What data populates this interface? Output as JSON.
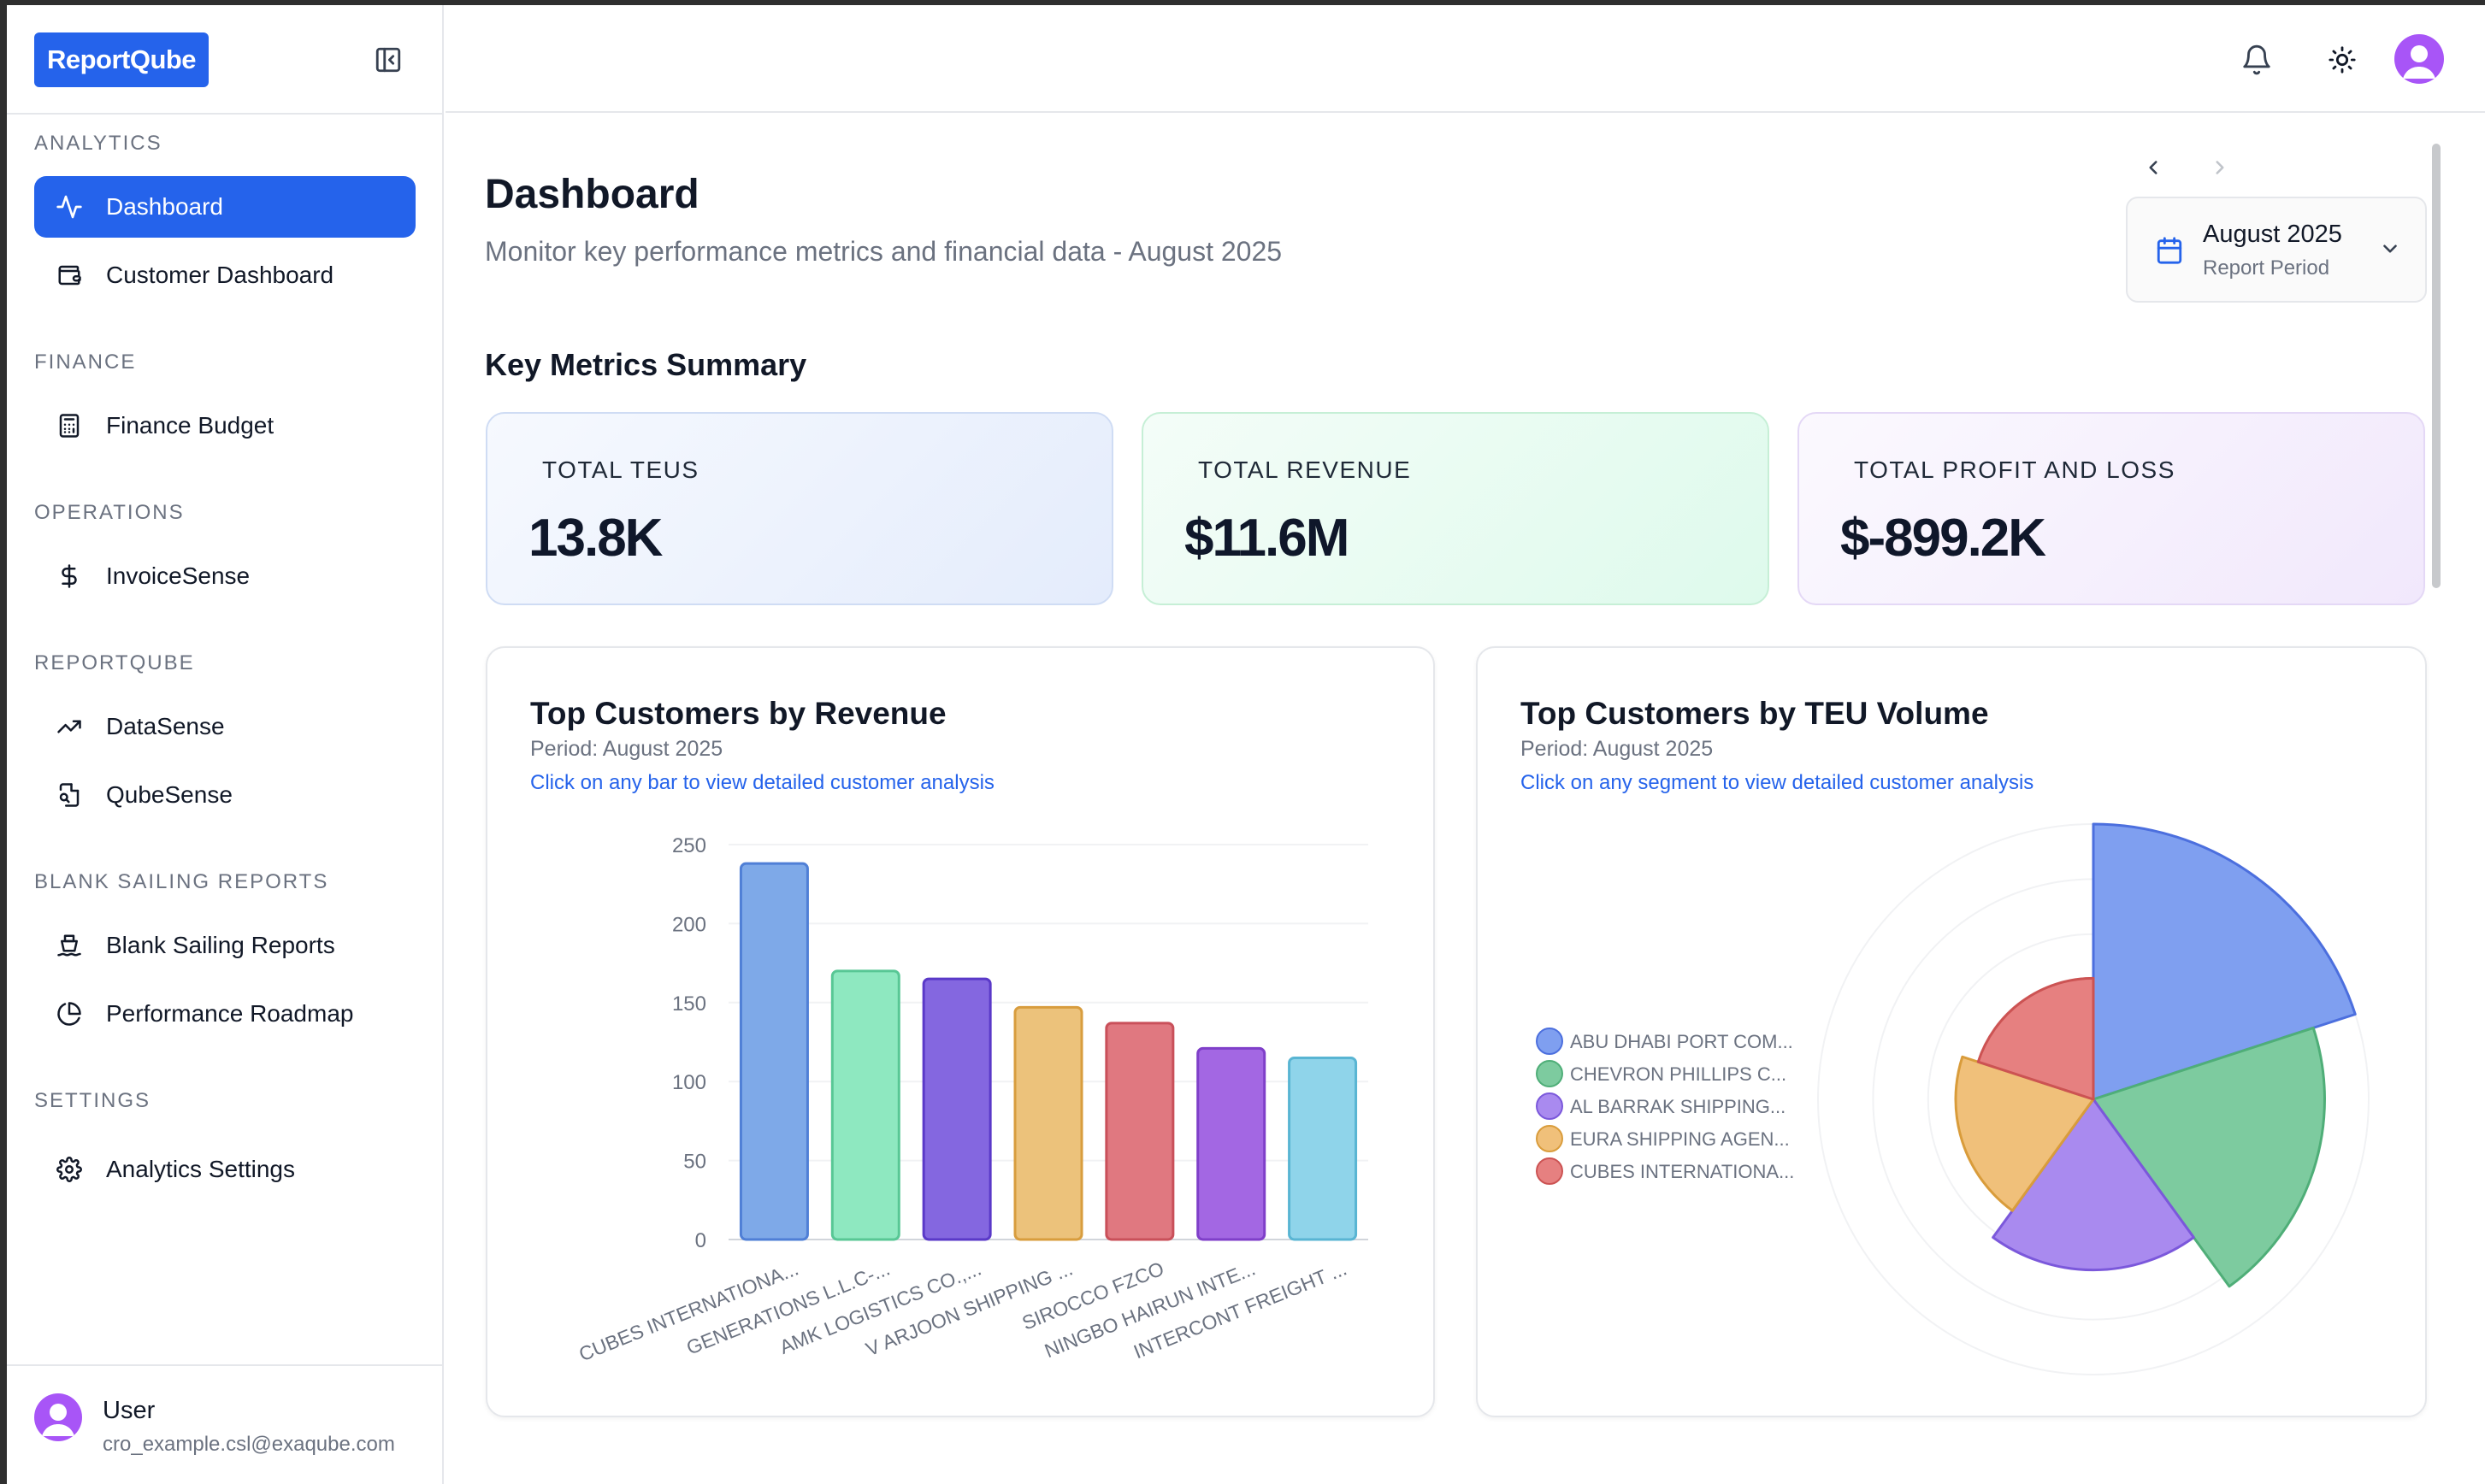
{
  "brand": {
    "name": "ReportQube"
  },
  "sidebar": {
    "sections": [
      {
        "label": "ANALYTICS",
        "items": [
          {
            "label": "Dashboard",
            "icon": "activity-icon",
            "active": true
          },
          {
            "label": "Customer Dashboard",
            "icon": "wallet-icon",
            "active": false
          }
        ]
      },
      {
        "label": "FINANCE",
        "items": [
          {
            "label": "Finance Budget",
            "icon": "calculator-icon",
            "active": false
          }
        ]
      },
      {
        "label": "OPERATIONS",
        "items": [
          {
            "label": "InvoiceSense",
            "icon": "dollar-icon",
            "active": false
          }
        ]
      },
      {
        "label": "REPORTQUBE",
        "items": [
          {
            "label": "DataSense",
            "icon": "trending-up-icon",
            "active": false
          },
          {
            "label": "QubeSense",
            "icon": "file-search-icon",
            "active": false
          }
        ]
      },
      {
        "label": "BLANK SAILING REPORTS",
        "items": [
          {
            "label": "Blank Sailing Reports",
            "icon": "ship-icon",
            "active": false
          },
          {
            "label": "Performance Roadmap",
            "icon": "pie-chart-icon",
            "active": false
          }
        ]
      },
      {
        "label": "SETTINGS",
        "items": [
          {
            "label": "Analytics Settings",
            "icon": "gear-icon",
            "active": false
          }
        ]
      }
    ],
    "user": {
      "name": "User",
      "email": "cro_example.csl@exaqube.com"
    }
  },
  "header": {
    "icons": [
      "bell-icon",
      "sun-icon",
      "user-avatar"
    ]
  },
  "page": {
    "title": "Dashboard",
    "subtitle": "Monitor key performance metrics and financial data - August 2025",
    "period": {
      "value": "August 2025",
      "label": "Report Period"
    }
  },
  "metrics": {
    "title": "Key Metrics Summary",
    "cards": [
      {
        "label": "TOTAL TEUS",
        "value": "13.8K"
      },
      {
        "label": "TOTAL REVENUE",
        "value": "$11.6M"
      },
      {
        "label": "TOTAL PROFIT AND LOSS",
        "value": "$-899.2K"
      }
    ]
  },
  "revenue_chart": {
    "title": "Top Customers by Revenue",
    "period": "Period: August 2025",
    "hint": "Click on any bar to view detailed customer analysis"
  },
  "teu_chart": {
    "title": "Top Customers by TEU Volume",
    "period": "Period: August 2025",
    "hint": "Click on any segment to view detailed customer analysis"
  },
  "colors": {
    "accent": "#2563eb",
    "avatar": "#a855f7"
  },
  "chart_data": [
    {
      "type": "bar",
      "categories": [
        "CUBES INTERNATIONA...",
        "GENERATIONS L.L.C-...",
        "AMK LOGISTICS CO.,...",
        "V ARJOON SHIPPING ...",
        "SIROCCO FZCO",
        "NINGBO HAIRUN INTE...",
        "INTERCONT FREIGHT ..."
      ],
      "values": [
        238,
        170,
        165,
        147,
        137,
        121,
        115
      ],
      "ylim": [
        0,
        250
      ],
      "yticks": [
        0,
        50,
        100,
        150,
        200,
        250
      ],
      "colors": [
        {
          "fill": "#7ea9e8",
          "stroke": "#4f7fd6"
        },
        {
          "fill": "#8ee8c0",
          "stroke": "#58c795"
        },
        {
          "fill": "#8467e0",
          "stroke": "#5a39c8"
        },
        {
          "fill": "#ecc27b",
          "stroke": "#d89d3e"
        },
        {
          "fill": "#e07880",
          "stroke": "#c9505a"
        },
        {
          "fill": "#a367e3",
          "stroke": "#7f3fc9"
        },
        {
          "fill": "#8fd4ea",
          "stroke": "#59b5d3"
        }
      ],
      "grid": true,
      "legend": "none"
    },
    {
      "type": "polar-area",
      "legend": "left",
      "series": [
        {
          "name": "ABU DHABI PORT COM...",
          "value": 100,
          "color": "#7f9ff0",
          "stroke": "#4c6fde"
        },
        {
          "name": "CHEVRON PHILLIPS C...",
          "value": 84,
          "color": "#7dcb9f",
          "stroke": "#4fae78"
        },
        {
          "name": "AL BARRAK SHIPPING...",
          "value": 62,
          "color": "#a98aef",
          "stroke": "#7b58db"
        },
        {
          "name": "EURA SHIPPING AGEN...",
          "value": 50,
          "color": "#f0c07a",
          "stroke": "#d99c3b"
        },
        {
          "name": "CUBES INTERNATIONA...",
          "value": 44,
          "color": "#e68080",
          "stroke": "#cc5353"
        }
      ]
    }
  ]
}
